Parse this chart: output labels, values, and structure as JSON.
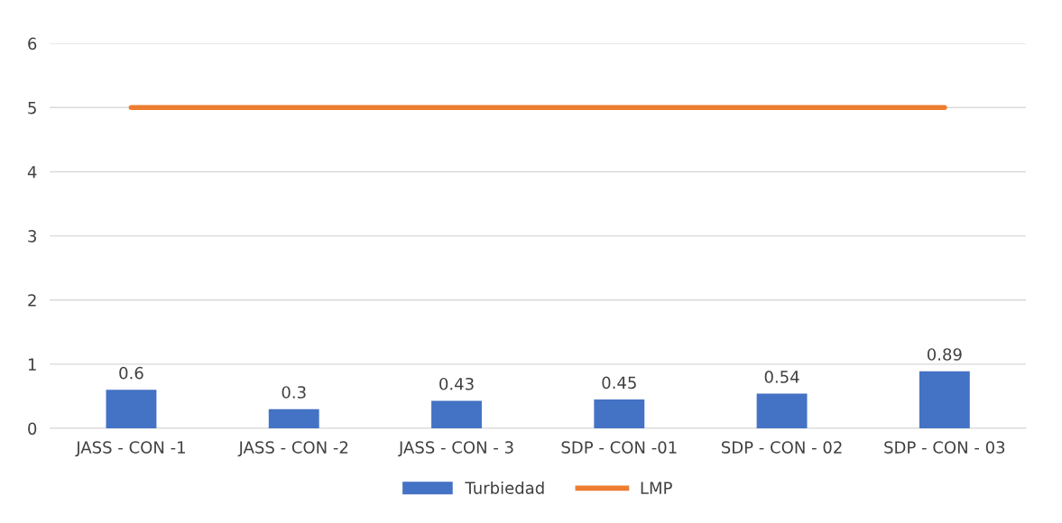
{
  "chart_data": {
    "type": "bar",
    "categories": [
      "JASS - CON -1",
      "JASS - CON -2",
      "JASS - CON - 3",
      "SDP - CON -01",
      "SDP - CON - 02",
      "SDP - CON - 03"
    ],
    "series": [
      {
        "name": "Turbiedad",
        "color": "#4472c4",
        "values": [
          0.6,
          0.3,
          0.43,
          0.45,
          0.54,
          0.89
        ],
        "data_labels": true
      },
      {
        "name": "LMP",
        "type": "line",
        "color": "#ed7d31",
        "values": [
          5,
          5,
          5,
          5,
          5,
          5
        ]
      }
    ],
    "ylim": [
      0,
      6
    ],
    "yticks": [
      0,
      1,
      2,
      3,
      4,
      5,
      6
    ],
    "grid": "y",
    "legend": "bottom",
    "marker": "none"
  }
}
